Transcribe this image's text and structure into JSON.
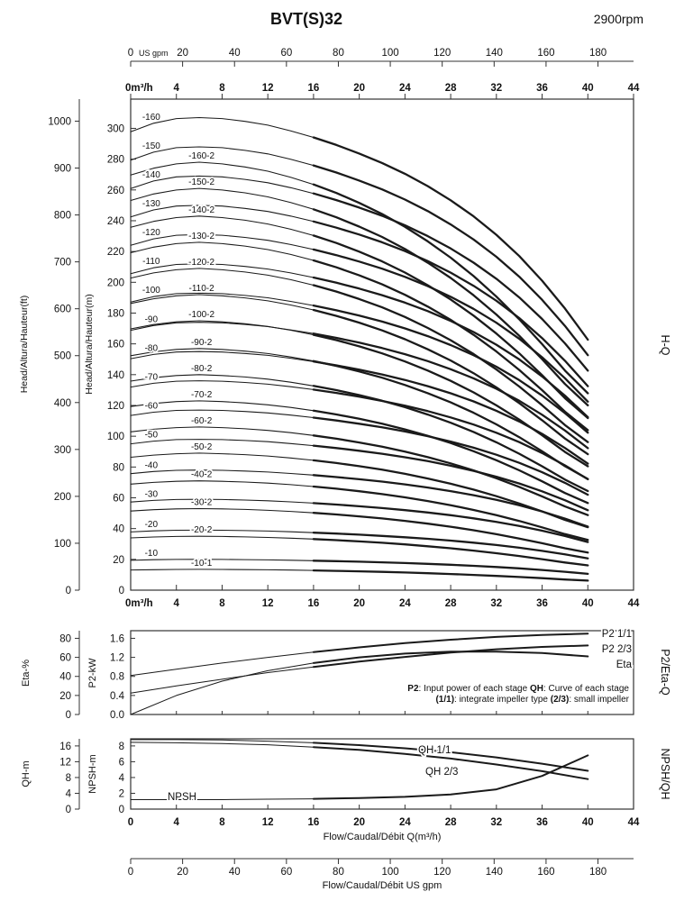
{
  "chart_data": {
    "type": "line",
    "title": "BVT(S)32",
    "rpm": "2900rpm",
    "labels": {
      "head_ft": "Head/Altura/Hauteur(ft)",
      "head_m": "Head/Altura/Hauteur(m)",
      "eta": "Eta-%",
      "p2": "P2-kW",
      "qh": "QH-m",
      "npsh": "NPSH-m",
      "flow_m3h": "Flow/Caudal/Débit Q(m³/h)",
      "flow_gpm": "Flow/Caudal/Débit  US gpm",
      "right_hq": "H-Q",
      "right_p2eta": "P2/Eta-Q",
      "right_npshqh": "NPSH/QH"
    },
    "main": {
      "name": "H-Q",
      "x_m3h": {
        "unit": "m³/h",
        "min": 0,
        "max": 44,
        "ticks": [
          0,
          4,
          8,
          12,
          16,
          20,
          24,
          28,
          32,
          36,
          40,
          44
        ]
      },
      "x_gpm": {
        "unit": "US gpm",
        "min": 0,
        "max": 193.7,
        "ticks": [
          0,
          20,
          40,
          60,
          80,
          100,
          120,
          140,
          160,
          180
        ]
      },
      "y_m": {
        "min": 0,
        "max": 319,
        "ticks": [
          0,
          20,
          40,
          60,
          80,
          100,
          120,
          140,
          160,
          180,
          200,
          220,
          240,
          260,
          280,
          300
        ]
      },
      "y_ft": {
        "min": 0,
        "max": 1047,
        "ticks": [
          0,
          100,
          200,
          300,
          400,
          500,
          600,
          700,
          800,
          900,
          1000
        ]
      },
      "q": [
        0,
        2,
        4,
        6,
        8,
        10,
        12,
        14,
        16,
        18,
        20,
        22,
        24,
        26,
        28,
        30,
        32,
        34,
        36,
        38,
        40
      ],
      "shape_full": [
        0.97,
        0.988,
        0.998,
        1.0,
        0.998,
        0.992,
        0.984,
        0.972,
        0.958,
        0.942,
        0.924,
        0.904,
        0.881,
        0.855,
        0.825,
        0.791,
        0.752,
        0.707,
        0.655,
        0.596,
        0.53
      ],
      "shape_small": [
        0.97,
        0.986,
        0.996,
        1.0,
        0.996,
        0.989,
        0.979,
        0.965,
        0.948,
        0.928,
        0.905,
        0.879,
        0.849,
        0.815,
        0.777,
        0.734,
        0.686,
        0.633,
        0.575,
        0.513,
        0.46
      ],
      "series": [
        {
          "label": "-160",
          "h0": 307,
          "impeller": "full"
        },
        {
          "label": "-160-2",
          "h0": 278,
          "impeller": "small"
        },
        {
          "label": "-150",
          "h0": 288,
          "impeller": "full"
        },
        {
          "label": "-150-2",
          "h0": 261,
          "impeller": "small"
        },
        {
          "label": "-140",
          "h0": 269,
          "impeller": "full"
        },
        {
          "label": "-140-2",
          "h0": 243,
          "impeller": "small"
        },
        {
          "label": "-130",
          "h0": 250,
          "impeller": "full"
        },
        {
          "label": "-130-2",
          "h0": 226,
          "impeller": "small"
        },
        {
          "label": "-120",
          "h0": 231,
          "impeller": "full"
        },
        {
          "label": "-120-2",
          "h0": 209,
          "impeller": "small"
        },
        {
          "label": "-110",
          "h0": 212,
          "impeller": "full"
        },
        {
          "label": "-110-2",
          "h0": 192,
          "impeller": "small"
        },
        {
          "label": "-100",
          "h0": 193,
          "impeller": "full"
        },
        {
          "label": "-100-2",
          "h0": 175,
          "impeller": "small"
        },
        {
          "label": "-90",
          "h0": 174,
          "impeller": "full"
        },
        {
          "label": "-90-2",
          "h0": 157,
          "impeller": "small"
        },
        {
          "label": "-80",
          "h0": 155,
          "impeller": "full"
        },
        {
          "label": "-80-2",
          "h0": 140,
          "impeller": "small"
        },
        {
          "label": "-70",
          "h0": 136,
          "impeller": "full"
        },
        {
          "label": "-70-2",
          "h0": 123,
          "impeller": "small"
        },
        {
          "label": "-60",
          "h0": 117,
          "impeller": "full"
        },
        {
          "label": "-60-2",
          "h0": 106,
          "impeller": "small"
        },
        {
          "label": "-50",
          "h0": 98,
          "impeller": "full"
        },
        {
          "label": "-50-2",
          "h0": 89,
          "impeller": "small"
        },
        {
          "label": "-40",
          "h0": 78,
          "impeller": "full"
        },
        {
          "label": "-40-2",
          "h0": 71,
          "impeller": "small"
        },
        {
          "label": "-30",
          "h0": 59,
          "impeller": "full"
        },
        {
          "label": "-30-2",
          "h0": 53,
          "impeller": "small"
        },
        {
          "label": "-20",
          "h0": 39,
          "impeller": "full"
        },
        {
          "label": "-20-2",
          "h0": 35,
          "impeller": "small"
        },
        {
          "label": "-10",
          "h0": 20,
          "impeller": "full"
        },
        {
          "label": "-10-1",
          "h0": 13.5,
          "impeller": "small"
        }
      ]
    },
    "power_eta": {
      "name": "P2/Eta-Q",
      "y_eta": {
        "min": 0,
        "max": 88,
        "ticks": [
          0,
          20,
          40,
          60,
          80
        ]
      },
      "y_p2": {
        "min": 0,
        "max": 1.76,
        "ticks": [
          0,
          0.4,
          0.8,
          1.2,
          1.6
        ]
      },
      "q": [
        0,
        4,
        8,
        12,
        16,
        20,
        24,
        28,
        32,
        36,
        40
      ],
      "series": [
        {
          "label": "P2 1/1",
          "axis": "p2",
          "values": [
            0.82,
            0.95,
            1.08,
            1.2,
            1.31,
            1.41,
            1.5,
            1.57,
            1.63,
            1.67,
            1.7
          ]
        },
        {
          "label": "P2 2/3",
          "axis": "p2",
          "values": [
            0.45,
            0.6,
            0.74,
            0.88,
            1.0,
            1.11,
            1.21,
            1.3,
            1.37,
            1.42,
            1.45
          ]
        },
        {
          "label": "Eta",
          "axis": "eta",
          "values": [
            0,
            20,
            35,
            46,
            54,
            60,
            64,
            66,
            66,
            64.5,
            61
          ]
        }
      ]
    },
    "npsh_qh": {
      "name": "NPSH/QH",
      "y_qh": {
        "min": 0,
        "max": 17.8,
        "ticks": [
          0,
          4,
          8,
          12,
          16
        ]
      },
      "y_npsh": {
        "min": 0,
        "max": 8.9,
        "ticks": [
          0,
          2,
          4,
          6,
          8
        ]
      },
      "q": [
        0,
        4,
        8,
        12,
        16,
        20,
        24,
        28,
        32,
        36,
        40
      ],
      "series": [
        {
          "label": "QH 1/1",
          "axis": "qh",
          "values": [
            17.6,
            17.6,
            17.5,
            17.2,
            16.8,
            16.2,
            15.4,
            14.4,
            13.1,
            11.5,
            9.7
          ]
        },
        {
          "label": "QH 2/3",
          "axis": "qh",
          "values": [
            16.9,
            16.8,
            16.6,
            16.3,
            15.7,
            15.0,
            14.0,
            12.8,
            11.3,
            9.6,
            7.6
          ]
        },
        {
          "label": "NPSH",
          "axis": "npsh",
          "values": [
            1.2,
            1.2,
            1.2,
            1.25,
            1.3,
            1.4,
            1.55,
            1.85,
            2.5,
            4.2,
            6.8
          ]
        }
      ]
    },
    "note": {
      "line1": [
        {
          "text": "P2",
          "bold": true
        },
        {
          "text": ": Input power of each stage ",
          "bold": false
        },
        {
          "text": "QH",
          "bold": true
        },
        {
          "text": ": Curve of each stage",
          "bold": false
        }
      ],
      "line2": [
        {
          "text": "(1/1)",
          "bold": true
        },
        {
          "text": ": integrate impeller type ",
          "bold": false
        },
        {
          "text": "(2/3)",
          "bold": true
        },
        {
          "text": ": small impeller",
          "bold": false
        }
      ]
    }
  }
}
